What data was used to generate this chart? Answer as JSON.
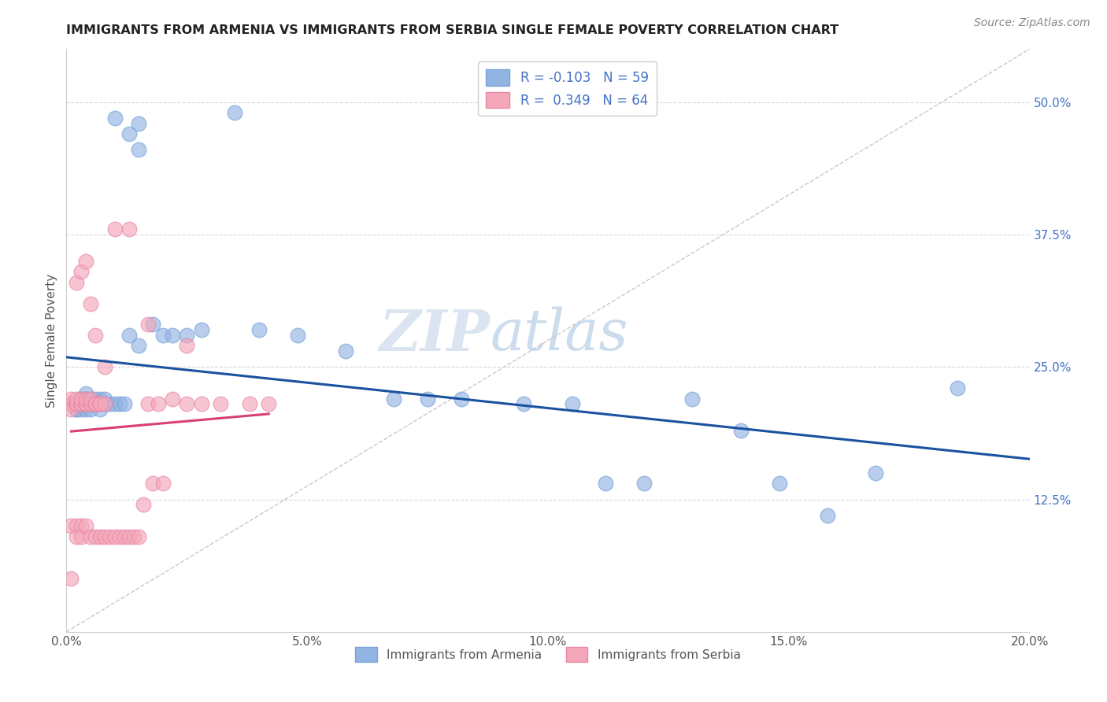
{
  "title": "IMMIGRANTS FROM ARMENIA VS IMMIGRANTS FROM SERBIA SINGLE FEMALE POVERTY CORRELATION CHART",
  "source": "Source: ZipAtlas.com",
  "xlabel_ticks": [
    "0.0%",
    "5.0%",
    "10.0%",
    "15.0%",
    "20.0%"
  ],
  "xlabel_tick_vals": [
    0.0,
    0.05,
    0.1,
    0.15,
    0.2
  ],
  "ylabel_ticks": [
    "12.5%",
    "25.0%",
    "37.5%",
    "50.0%"
  ],
  "ylabel_tick_vals": [
    0.125,
    0.25,
    0.375,
    0.5
  ],
  "xlim": [
    0.0,
    0.2
  ],
  "ylim": [
    0.0,
    0.55
  ],
  "ylabel": "Single Female Poverty",
  "armenia_color": "#92b4e3",
  "serbia_color": "#f4a7b9",
  "armenia_line_color": "#1a52a0",
  "serbia_line_color": "#d94070",
  "armenia_R": -0.103,
  "armenia_N": 59,
  "serbia_R": 0.349,
  "serbia_N": 64,
  "legend_label_armenia": "Immigrants from Armenia",
  "legend_label_serbia": "Immigrants from Serbia",
  "armenia_scatter_x": [
    0.01,
    0.013,
    0.015,
    0.015,
    0.035,
    0.002,
    0.002,
    0.002,
    0.002,
    0.003,
    0.003,
    0.003,
    0.003,
    0.003,
    0.003,
    0.004,
    0.004,
    0.004,
    0.004,
    0.004,
    0.004,
    0.004,
    0.005,
    0.005,
    0.005,
    0.006,
    0.006,
    0.006,
    0.007,
    0.007,
    0.008,
    0.008,
    0.009,
    0.01,
    0.011,
    0.012,
    0.013,
    0.015,
    0.018,
    0.02,
    0.022,
    0.025,
    0.028,
    0.04,
    0.048,
    0.058,
    0.068,
    0.075,
    0.082,
    0.095,
    0.105,
    0.112,
    0.12,
    0.13,
    0.14,
    0.148,
    0.158,
    0.168,
    0.185
  ],
  "armenia_scatter_y": [
    0.485,
    0.47,
    0.455,
    0.48,
    0.49,
    0.21,
    0.21,
    0.215,
    0.215,
    0.21,
    0.215,
    0.22,
    0.215,
    0.215,
    0.22,
    0.21,
    0.215,
    0.215,
    0.22,
    0.22,
    0.225,
    0.22,
    0.21,
    0.215,
    0.22,
    0.215,
    0.215,
    0.22,
    0.21,
    0.22,
    0.215,
    0.22,
    0.215,
    0.215,
    0.215,
    0.215,
    0.28,
    0.27,
    0.29,
    0.28,
    0.28,
    0.28,
    0.285,
    0.285,
    0.28,
    0.265,
    0.22,
    0.22,
    0.22,
    0.215,
    0.215,
    0.14,
    0.14,
    0.22,
    0.19,
    0.14,
    0.11,
    0.15,
    0.23
  ],
  "serbia_scatter_x": [
    0.001,
    0.001,
    0.001,
    0.001,
    0.001,
    0.001,
    0.002,
    0.002,
    0.002,
    0.002,
    0.002,
    0.002,
    0.003,
    0.003,
    0.003,
    0.003,
    0.003,
    0.003,
    0.004,
    0.004,
    0.004,
    0.004,
    0.004,
    0.005,
    0.005,
    0.005,
    0.005,
    0.006,
    0.006,
    0.006,
    0.006,
    0.007,
    0.007,
    0.007,
    0.008,
    0.008,
    0.009,
    0.01,
    0.011,
    0.012,
    0.013,
    0.014,
    0.015,
    0.016,
    0.017,
    0.018,
    0.019,
    0.02,
    0.022,
    0.025,
    0.028,
    0.032,
    0.038,
    0.042,
    0.002,
    0.003,
    0.004,
    0.005,
    0.006,
    0.008,
    0.01,
    0.013,
    0.017,
    0.025
  ],
  "serbia_scatter_y": [
    0.215,
    0.215,
    0.22,
    0.21,
    0.05,
    0.1,
    0.215,
    0.215,
    0.215,
    0.22,
    0.1,
    0.09,
    0.215,
    0.215,
    0.215,
    0.22,
    0.1,
    0.09,
    0.215,
    0.215,
    0.215,
    0.22,
    0.1,
    0.215,
    0.215,
    0.22,
    0.09,
    0.215,
    0.215,
    0.215,
    0.09,
    0.215,
    0.215,
    0.09,
    0.215,
    0.09,
    0.09,
    0.09,
    0.09,
    0.09,
    0.09,
    0.09,
    0.09,
    0.12,
    0.215,
    0.14,
    0.215,
    0.14,
    0.22,
    0.215,
    0.215,
    0.215,
    0.215,
    0.215,
    0.33,
    0.34,
    0.35,
    0.31,
    0.28,
    0.25,
    0.38,
    0.38,
    0.29,
    0.27
  ],
  "watermark_zip": "ZIP",
  "watermark_atlas": "atlas"
}
